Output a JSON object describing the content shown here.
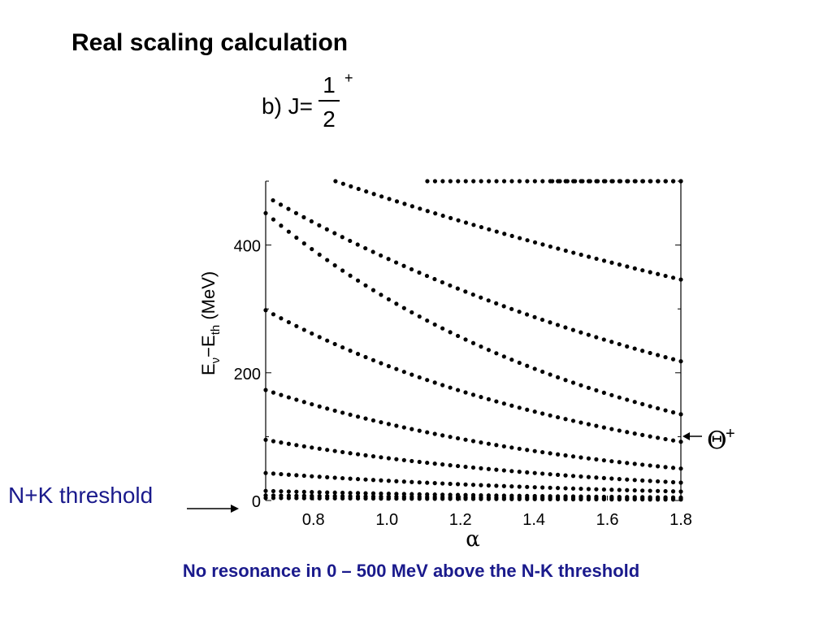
{
  "slide": {
    "title": "Real scaling calculation",
    "footer": "No resonance in 0 – 500 MeV above the N-K threshold",
    "threshold_label": "N+K threshold",
    "colors": {
      "footer": "#1a1a8c",
      "threshold_label": "#1a1a8c",
      "dots": "#000000"
    }
  },
  "chart_data": {
    "type": "scatter",
    "panel_label": "b) J=",
    "j_numerator": "1",
    "j_denominator": "2",
    "j_parity": "+",
    "xlabel": "α",
    "ylabel": {
      "E": "E",
      "sub1": "ν",
      "minus": "−E",
      "sub2": "th",
      "unit": " (MeV)"
    },
    "xlim": [
      0.67,
      1.8
    ],
    "ylim": [
      0,
      500
    ],
    "xticks": [
      0.8,
      1.0,
      1.2,
      1.4,
      1.6,
      1.8
    ],
    "xtick_labels": [
      "0.8",
      "1.0",
      "1.2",
      "1.4",
      "1.6",
      "1.8"
    ],
    "yticks": [
      0,
      200,
      400
    ],
    "ytick_labels": [
      "0",
      "200",
      "400"
    ],
    "annotation": {
      "text": "Θ",
      "sup": "+",
      "y": 95
    },
    "grid": false,
    "series": [
      {
        "points": [
          [
            0.67,
            15
          ],
          [
            1.8,
            4.7
          ]
        ]
      },
      {
        "points": [
          [
            0.67,
            43
          ],
          [
            1.8,
            14
          ]
        ]
      },
      {
        "points": [
          [
            0.67,
            95
          ],
          [
            1.8,
            28
          ]
        ]
      },
      {
        "points": [
          [
            0.67,
            173
          ],
          [
            1.8,
            50
          ]
        ]
      },
      {
        "points": [
          [
            0.67,
            298
          ],
          [
            1.8,
            92
          ]
        ]
      },
      {
        "points": [
          [
            0.67,
            450
          ],
          [
            1.8,
            135
          ]
        ]
      },
      {
        "points": [
          [
            0.69,
            470
          ],
          [
            1.8,
            218
          ]
        ]
      },
      {
        "points": [
          [
            0.86,
            500
          ],
          [
            1.8,
            346
          ]
        ]
      },
      {
        "points": [
          [
            1.11,
            500
          ],
          [
            1.8,
            500
          ]
        ]
      },
      {
        "points": [
          [
            1.45,
            500
          ],
          [
            1.8,
            500
          ]
        ]
      },
      {
        "points": [
          [
            0.67,
            8
          ],
          [
            1.8,
            3
          ]
        ]
      },
      {
        "points": [
          [
            0.67,
            4
          ],
          [
            1.8,
            1.5
          ]
        ]
      }
    ]
  }
}
